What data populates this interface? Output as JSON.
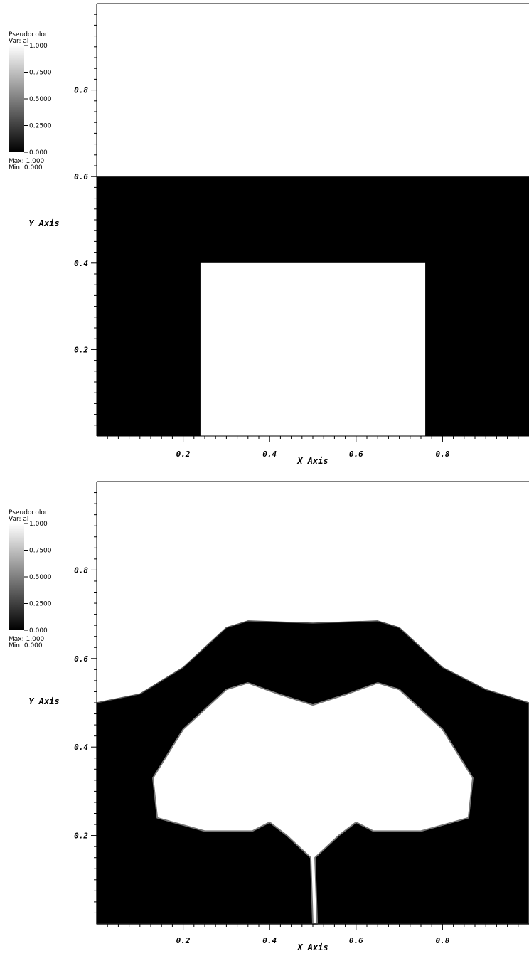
{
  "chart_data": [
    {
      "type": "heatmap",
      "plot_kind": "pseudocolor",
      "state": "initial",
      "xlabel": "X Axis",
      "ylabel": "Y Axis",
      "xlim": [
        0,
        1
      ],
      "ylim": [
        0,
        1
      ],
      "xticks": [
        0.2,
        0.4,
        0.6,
        0.8
      ],
      "xtick_labels": [
        "0.2",
        "0.4",
        "0.6",
        "0.8"
      ],
      "yticks": [
        0.2,
        0.4,
        0.6,
        0.8
      ],
      "ytick_labels": [
        "0.2",
        "0.4",
        "0.6",
        "0.8"
      ],
      "colormap": "grayscale",
      "color_low": "#000000",
      "color_high": "#ffffff",
      "legend": {
        "title": "Pseudocolor",
        "var": "Var: al",
        "levels": [
          "1.000",
          "0.7500",
          "0.5000",
          "0.2500",
          "0.000"
        ],
        "max": "Max:  1.000",
        "min": "Min:  0.000",
        "placement": "top-left"
      },
      "regions": [
        {
          "value": 1,
          "x": [
            0,
            1
          ],
          "y": [
            0.6,
            1
          ]
        },
        {
          "value": 0,
          "x": [
            0,
            1
          ],
          "y": [
            0,
            0.6
          ]
        },
        {
          "value": 1,
          "x": [
            0.24,
            0.76
          ],
          "y": [
            0,
            0.4
          ]
        }
      ]
    },
    {
      "type": "heatmap",
      "plot_kind": "pseudocolor",
      "state": "evolved",
      "xlabel": "X Axis",
      "ylabel": "Y Axis",
      "xlim": [
        0,
        1
      ],
      "ylim": [
        0,
        1
      ],
      "xticks": [
        0.2,
        0.4,
        0.6,
        0.8
      ],
      "xtick_labels": [
        "0.2",
        "0.4",
        "0.6",
        "0.8"
      ],
      "yticks": [
        0.2,
        0.4,
        0.6,
        0.8
      ],
      "ytick_labels": [
        "0.2",
        "0.4",
        "0.6",
        "0.8"
      ],
      "colormap": "grayscale",
      "color_low": "#000000",
      "color_high": "#ffffff",
      "legend": {
        "title": "Pseudocolor",
        "var": "Var: al",
        "levels": [
          "1.000",
          "0.7500",
          "0.5000",
          "0.2500",
          "0.000"
        ],
        "max": "Max:  1.000",
        "min": "Min:  0.000",
        "placement": "top-left"
      },
      "black_band_outline": [
        [
          0,
          0
        ],
        [
          0,
          0.5
        ],
        [
          0.1,
          0.52
        ],
        [
          0.2,
          0.58
        ],
        [
          0.3,
          0.67
        ],
        [
          0.35,
          0.685
        ],
        [
          0.5,
          0.68
        ],
        [
          0.65,
          0.685
        ],
        [
          0.7,
          0.67
        ],
        [
          0.8,
          0.58
        ],
        [
          0.9,
          0.53
        ],
        [
          1,
          0.5
        ],
        [
          1,
          0
        ]
      ],
      "white_bubble_outline": [
        [
          0.5,
          0
        ],
        [
          0.495,
          0.15
        ],
        [
          0.44,
          0.2
        ],
        [
          0.4,
          0.23
        ],
        [
          0.36,
          0.21
        ],
        [
          0.25,
          0.21
        ],
        [
          0.14,
          0.24
        ],
        [
          0.13,
          0.33
        ],
        [
          0.2,
          0.44
        ],
        [
          0.3,
          0.53
        ],
        [
          0.35,
          0.545
        ],
        [
          0.42,
          0.52
        ],
        [
          0.5,
          0.495
        ],
        [
          0.58,
          0.52
        ],
        [
          0.65,
          0.545
        ],
        [
          0.7,
          0.53
        ],
        [
          0.8,
          0.44
        ],
        [
          0.87,
          0.33
        ],
        [
          0.86,
          0.24
        ],
        [
          0.75,
          0.21
        ],
        [
          0.64,
          0.21
        ],
        [
          0.6,
          0.23
        ],
        [
          0.56,
          0.2
        ],
        [
          0.505,
          0.15
        ],
        [
          0.51,
          0
        ]
      ]
    }
  ]
}
